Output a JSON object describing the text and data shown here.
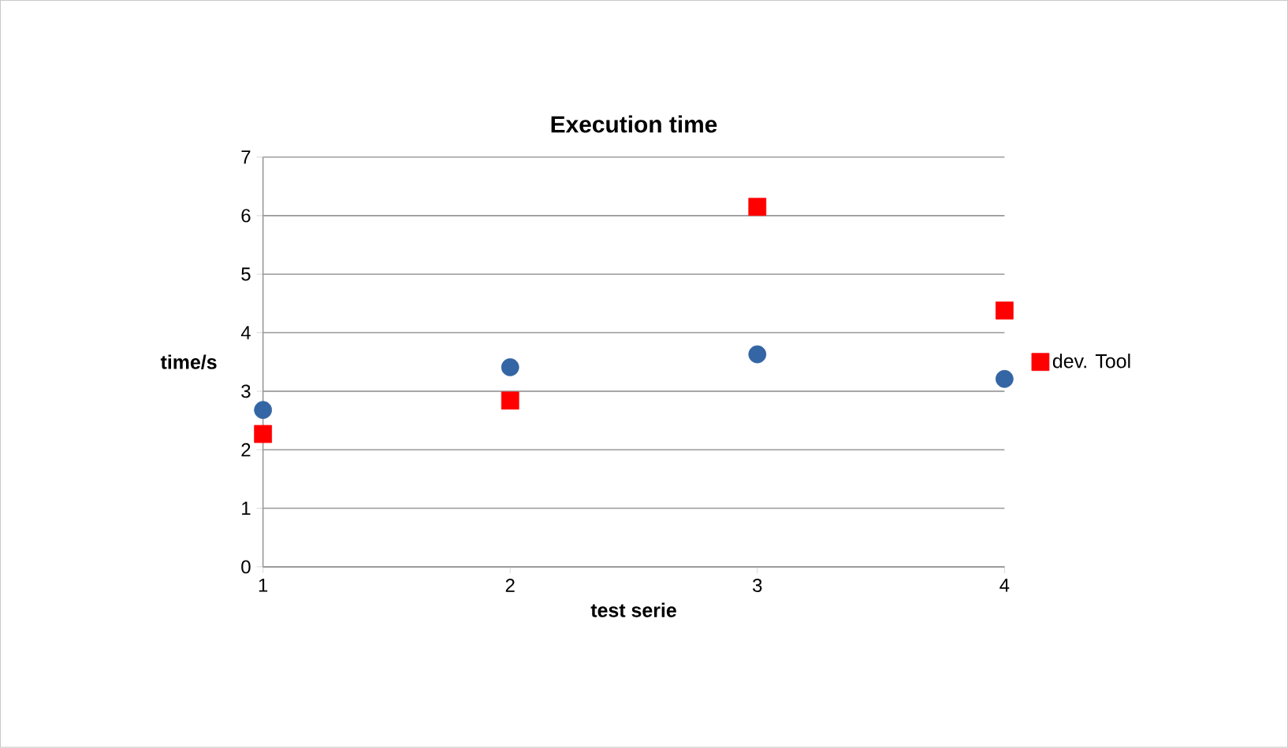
{
  "chart_data": {
    "type": "scatter",
    "title": "Execution time",
    "xlabel": "test serie",
    "ylabel": "time/s",
    "x": [
      1,
      2,
      3,
      4
    ],
    "xlim": [
      1,
      4
    ],
    "xticks": [
      1,
      2,
      3,
      4
    ],
    "ylim": [
      0,
      7
    ],
    "yticks": [
      0,
      1,
      2,
      3,
      4,
      5,
      6,
      7
    ],
    "series": [
      {
        "color": "#3465a4",
        "marker": "circle",
        "values": [
          2.68,
          3.41,
          3.63,
          3.21
        ]
      },
      {
        "name": "dev. Tool",
        "color": "#ff0000",
        "marker": "square",
        "values": [
          2.27,
          2.84,
          6.15,
          4.38
        ]
      }
    ],
    "grid": "y",
    "legend": "right"
  }
}
